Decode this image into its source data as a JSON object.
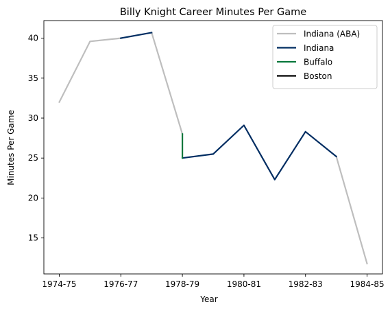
{
  "chart_data": {
    "type": "line",
    "title": "Billy Knight Career Minutes Per Game",
    "xlabel": "Year",
    "ylabel": "Minutes Per Game",
    "x_tick_labels": [
      "1974-75",
      "1976-77",
      "1978-79",
      "1980-81",
      "1982-83",
      "1984-85"
    ],
    "x_tick_positions": [
      0,
      2,
      4,
      6,
      8,
      10
    ],
    "xlim": [
      -0.5,
      10.5
    ],
    "ylim": [
      10.5,
      42.2
    ],
    "y_ticks": [
      15,
      20,
      25,
      30,
      35,
      40
    ],
    "grid": false,
    "legend_position": "top-right",
    "series": [
      {
        "name": "Indiana (ABA)",
        "color": "#bebebe",
        "segments": [
          [
            [
              0,
              32.0
            ],
            [
              1,
              39.6
            ],
            [
              2,
              40.0
            ]
          ],
          [
            [
              3,
              40.7
            ],
            [
              4,
              28.0
            ]
          ],
          [
            [
              9,
              25.2
            ],
            [
              10,
              11.8
            ]
          ]
        ]
      },
      {
        "name": "Indiana",
        "color": "#002d62",
        "segments": [
          [
            [
              2,
              40.0
            ],
            [
              3,
              40.7
            ]
          ],
          [
            [
              4,
              25.0
            ],
            [
              5,
              25.5
            ],
            [
              6,
              29.1
            ],
            [
              7,
              22.3
            ],
            [
              8,
              28.3
            ],
            [
              9,
              25.2
            ]
          ]
        ]
      },
      {
        "name": "Buffalo",
        "color": "#00763a",
        "segments": [
          [
            [
              4,
              28.0
            ],
            [
              4,
              25.0
            ]
          ]
        ]
      },
      {
        "name": "Boston",
        "color": "#000000",
        "segments": []
      }
    ]
  }
}
